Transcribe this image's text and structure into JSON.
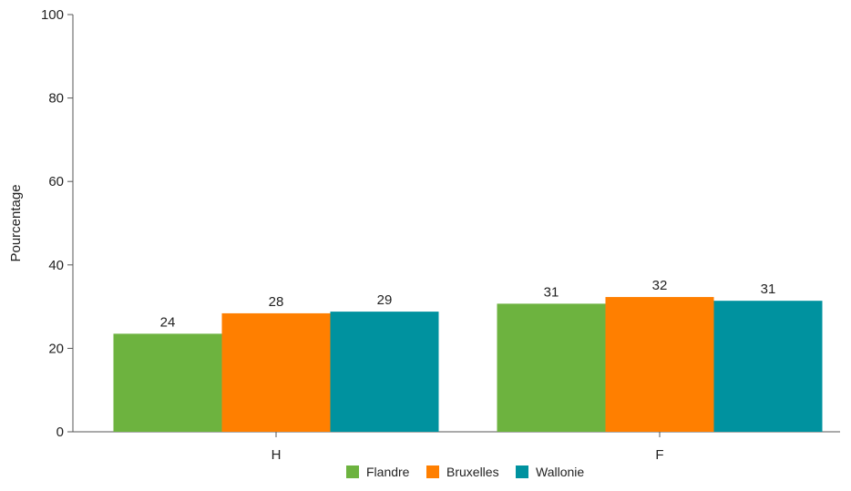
{
  "chart_data": {
    "type": "bar",
    "title": "",
    "xlabel": "",
    "ylabel": "Pourcentage",
    "ylim": [
      0,
      100
    ],
    "yticks": [
      0,
      20,
      40,
      60,
      80,
      100
    ],
    "categories": [
      "H",
      "F"
    ],
    "series": [
      {
        "name": "Flandre",
        "color": "#6db33f",
        "values": [
          23.5,
          30.7
        ],
        "labels": [
          "24",
          "31"
        ]
      },
      {
        "name": "Bruxelles",
        "color": "#ff7f00",
        "values": [
          28.4,
          32.3
        ],
        "labels": [
          "28",
          "32"
        ]
      },
      {
        "name": "Wallonie",
        "color": "#00929f",
        "values": [
          28.8,
          31.4
        ],
        "labels": [
          "29",
          "31"
        ]
      }
    ],
    "grid": false,
    "legend": "bottom"
  }
}
